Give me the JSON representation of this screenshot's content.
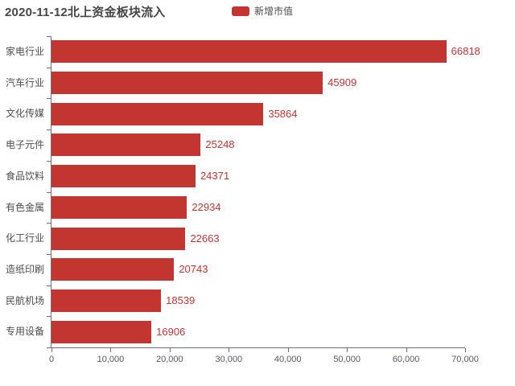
{
  "header": {
    "title": "2020-11-12北上资金板块流入",
    "legend": {
      "label": "新增市值",
      "color": "#c23531"
    }
  },
  "chart_data": {
    "type": "bar",
    "orientation": "horizontal",
    "title": "2020-11-12北上资金板块流入",
    "series_name": "新增市值",
    "categories": [
      "家电行业",
      "汽车行业",
      "文化传媒",
      "电子元件",
      "食品饮料",
      "有色金属",
      "化工行业",
      "造纸印刷",
      "民航机场",
      "专用设备"
    ],
    "values": [
      66818,
      45909,
      35864,
      25248,
      24371,
      22934,
      22663,
      20743,
      18539,
      16906
    ],
    "value_labels": [
      "66818",
      "45909",
      "35864",
      "25248",
      "24371",
      "22934",
      "22663",
      "20743",
      "18539",
      "16906"
    ],
    "xlim": [
      0,
      70000
    ],
    "x_ticks": [
      0,
      10000,
      20000,
      30000,
      40000,
      50000,
      60000,
      70000
    ],
    "x_tick_labels": [
      "0",
      "10,000",
      "20,000",
      "30,000",
      "40,000",
      "50,000",
      "60,000",
      "70,000"
    ],
    "bar_color": "#c23531",
    "value_label_color": "#c23531",
    "axis_color": "#6e7079",
    "grid": false,
    "legend_position": "top"
  }
}
